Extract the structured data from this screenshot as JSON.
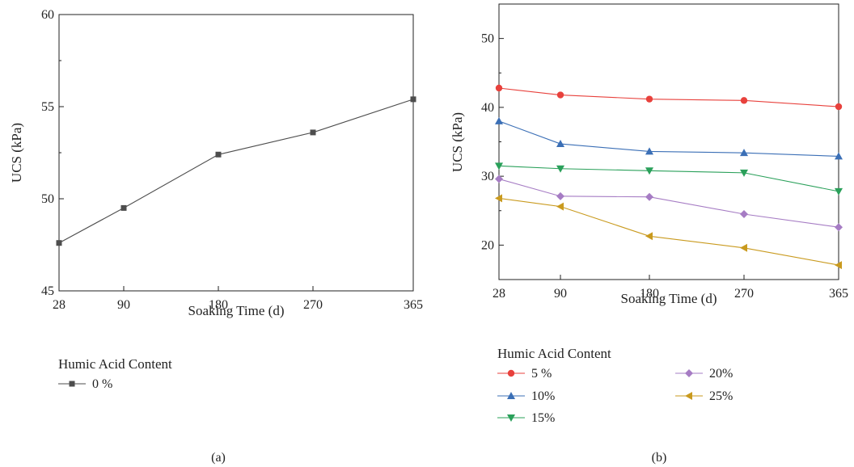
{
  "chart_data": [
    {
      "type": "line",
      "panel_label": "(a)",
      "xlabel": "Soaking Time (d)",
      "ylabel": "UCS (kPa)",
      "x": [
        28,
        90,
        180,
        270,
        365
      ],
      "x_ticks": [
        "28",
        "90",
        "180",
        "270",
        "365"
      ],
      "y_ticks": [
        "45",
        "50",
        "55",
        "60"
      ],
      "ylim": [
        45,
        60
      ],
      "legend_title": "Humic Acid Content",
      "series": [
        {
          "name": "0 %",
          "marker": "square",
          "color": "#4d4d4d",
          "values": [
            47.6,
            49.5,
            52.4,
            53.6,
            55.4
          ]
        }
      ]
    },
    {
      "type": "line",
      "panel_label": "(b)",
      "xlabel": "Soaking Time (d)",
      "ylabel": "UCS (kPa)",
      "x": [
        28,
        90,
        180,
        270,
        365
      ],
      "x_ticks": [
        "28",
        "90",
        "180",
        "270",
        "365"
      ],
      "y_ticks": [
        "20",
        "30",
        "40",
        "50"
      ],
      "ylim": [
        15,
        55
      ],
      "legend_title": "Humic Acid Content",
      "series": [
        {
          "name": "5 %",
          "marker": "circle",
          "color": "#e8413c",
          "values": [
            42.8,
            41.8,
            41.2,
            41.0,
            40.1
          ]
        },
        {
          "name": "10%",
          "marker": "triangle-up",
          "color": "#3b6fb6",
          "values": [
            38.0,
            34.7,
            33.6,
            33.4,
            32.9
          ]
        },
        {
          "name": "15%",
          "marker": "triangle-down",
          "color": "#2aa05a",
          "values": [
            31.5,
            31.1,
            30.8,
            30.5,
            27.8
          ]
        },
        {
          "name": "20%",
          "marker": "diamond",
          "color": "#a67cc4",
          "values": [
            29.6,
            27.1,
            27.0,
            24.5,
            22.6
          ]
        },
        {
          "name": "25%",
          "marker": "triangle-left",
          "color": "#c99a1e",
          "values": [
            26.8,
            25.6,
            21.3,
            19.6,
            17.1
          ]
        }
      ]
    }
  ]
}
